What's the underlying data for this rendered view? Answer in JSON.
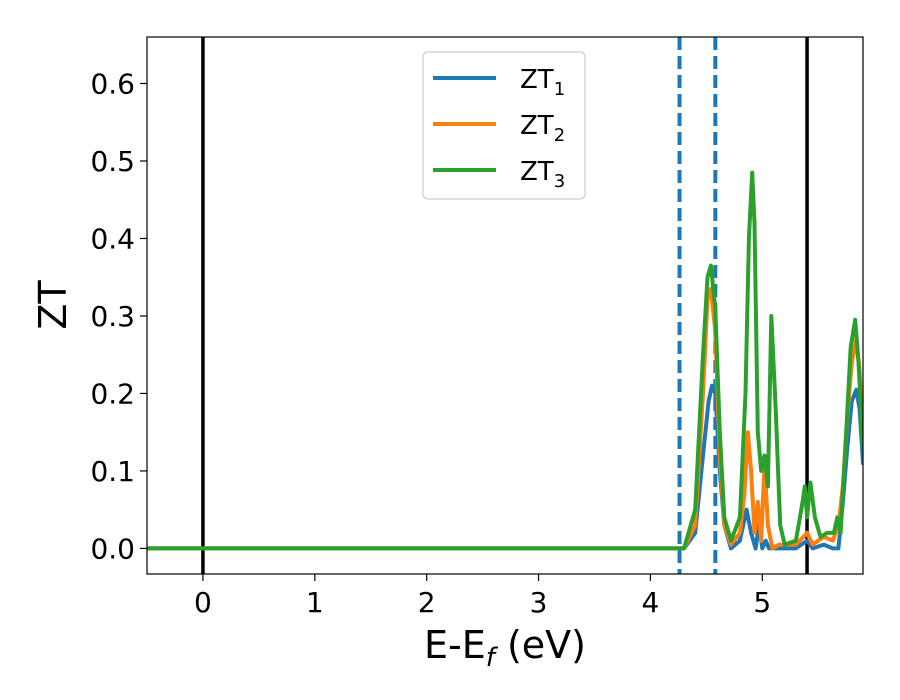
{
  "chart_data": {
    "type": "line",
    "xlabel": "E-E_f (eV)",
    "xlabel_main": "E-E",
    "xlabel_sub": "f",
    "xlabel_unit": " (eV)",
    "ylabel": "ZT",
    "xlim": [
      -0.5,
      5.9
    ],
    "ylim": [
      -0.033,
      0.66
    ],
    "x_ticks": [
      0,
      1,
      2,
      3,
      4,
      5
    ],
    "x_tick_labels": [
      "0",
      "1",
      "2",
      "3",
      "4",
      "5"
    ],
    "y_ticks": [
      0.0,
      0.1,
      0.2,
      0.3,
      0.4,
      0.5,
      0.6
    ],
    "y_tick_labels": [
      "0.0",
      "0.1",
      "0.2",
      "0.3",
      "0.4",
      "0.5",
      "0.6"
    ],
    "grid": false,
    "legend_position": "top-center",
    "vertical_lines": [
      {
        "x": 0.0,
        "style": "solid",
        "color": "#000000"
      },
      {
        "x": 5.4,
        "style": "solid",
        "color": "#000000"
      },
      {
        "x": 4.26,
        "style": "dashed",
        "color": "#1f77b4"
      },
      {
        "x": 4.58,
        "style": "dashed",
        "color": "#1f77b4"
      }
    ],
    "series": [
      {
        "name": "ZT1",
        "label_main": "ZT",
        "label_sub": "1",
        "color": "#1f77b4",
        "x": [
          -0.5,
          4.3,
          4.4,
          4.47,
          4.52,
          4.55,
          4.58,
          4.62,
          4.66,
          4.72,
          4.8,
          4.86,
          4.9,
          4.94,
          4.97,
          5.0,
          5.03,
          5.06,
          5.1,
          5.15,
          5.3,
          5.4,
          5.45,
          5.55,
          5.63,
          5.68,
          5.72,
          5.76,
          5.8,
          5.84,
          5.87,
          5.9
        ],
        "y": [
          0.0,
          0.0,
          0.02,
          0.12,
          0.19,
          0.21,
          0.2,
          0.1,
          0.03,
          0.0,
          0.01,
          0.05,
          0.02,
          0.0,
          0.03,
          0.0,
          0.01,
          0.0,
          0.0,
          0.0,
          0.0,
          0.01,
          0.0,
          0.005,
          0.0,
          0.0,
          0.06,
          0.13,
          0.19,
          0.205,
          0.18,
          0.11
        ]
      },
      {
        "name": "ZT2",
        "label_main": "ZT",
        "label_sub": "2",
        "color": "#ff7f0e",
        "x": [
          -0.5,
          4.3,
          4.4,
          4.47,
          4.51,
          4.54,
          4.58,
          4.62,
          4.66,
          4.72,
          4.8,
          4.84,
          4.87,
          4.9,
          4.93,
          4.96,
          4.99,
          5.02,
          5.05,
          5.09,
          5.15,
          5.3,
          5.4,
          5.45,
          5.55,
          5.63,
          5.68,
          5.72,
          5.76,
          5.8,
          5.84,
          5.87,
          5.9
        ],
        "y": [
          0.0,
          0.0,
          0.03,
          0.2,
          0.32,
          0.335,
          0.28,
          0.12,
          0.03,
          0.005,
          0.02,
          0.07,
          0.15,
          0.1,
          0.02,
          0.06,
          0.01,
          0.11,
          0.03,
          0.0,
          0.005,
          0.005,
          0.02,
          0.005,
          0.015,
          0.01,
          0.03,
          0.08,
          0.17,
          0.24,
          0.27,
          0.23,
          0.14
        ]
      },
      {
        "name": "ZT3",
        "label_main": "ZT",
        "label_sub": "3",
        "color": "#2ca02c",
        "x": [
          -0.5,
          4.3,
          4.4,
          4.47,
          4.51,
          4.54,
          4.58,
          4.62,
          4.66,
          4.72,
          4.8,
          4.85,
          4.88,
          4.91,
          4.93,
          4.96,
          4.99,
          5.02,
          5.05,
          5.08,
          5.12,
          5.16,
          5.2,
          5.3,
          5.36,
          5.38,
          5.4,
          5.43,
          5.47,
          5.52,
          5.58,
          5.64,
          5.67,
          5.7,
          5.75,
          5.79,
          5.83,
          5.86,
          5.9
        ],
        "y": [
          0.0,
          0.0,
          0.05,
          0.25,
          0.35,
          0.365,
          0.31,
          0.15,
          0.04,
          0.01,
          0.04,
          0.2,
          0.4,
          0.485,
          0.42,
          0.15,
          0.1,
          0.12,
          0.08,
          0.3,
          0.18,
          0.03,
          0.005,
          0.01,
          0.06,
          0.08,
          0.04,
          0.085,
          0.04,
          0.015,
          0.02,
          0.02,
          0.04,
          0.02,
          0.15,
          0.26,
          0.295,
          0.24,
          0.13
        ]
      }
    ]
  }
}
